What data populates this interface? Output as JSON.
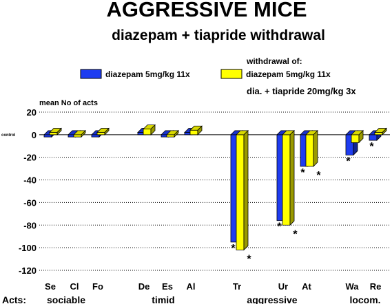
{
  "chart_data": {
    "type": "bar",
    "title": "AGGRESSIVE MICE",
    "subtitle": "diazepam + tiapride withdrawal",
    "ylabel": "mean No of acts",
    "zero_label": "control",
    "ylim": [
      -120,
      20
    ],
    "yticks": [
      20,
      0,
      -20,
      -40,
      -60,
      -80,
      -100,
      -120
    ],
    "grid": "dotted-horizontal",
    "legend": {
      "placement": "top",
      "heading": "withdrawal of:",
      "extra_line": "dia. + tiapride 20mg/kg 3x"
    },
    "categories": [
      "Se",
      "Cl",
      "Fo",
      "De",
      "Es",
      "Al",
      "Tr",
      "Ur",
      "At",
      "Wa",
      "Re"
    ],
    "groups_label": "Acts:",
    "groups": [
      {
        "name": "sociable",
        "members": [
          "Se",
          "Cl",
          "Fo"
        ]
      },
      {
        "name": "timid",
        "members": [
          "De",
          "Es",
          "Al"
        ]
      },
      {
        "name": "aggressive",
        "members": [
          "Tr",
          "Ur",
          "At"
        ]
      },
      {
        "name": "locom.",
        "members": [
          "Wa",
          "Re"
        ]
      }
    ],
    "series": [
      {
        "name": "diazepam 5mg/kg 11x",
        "color": "#1e3cf0",
        "values": [
          -2,
          -2,
          -2,
          2,
          -2,
          2,
          -95,
          -76,
          -28,
          -18,
          -5
        ],
        "significant": [
          false,
          false,
          false,
          false,
          false,
          false,
          true,
          true,
          true,
          true,
          true
        ]
      },
      {
        "name": "diazepam 5mg/kg 11x",
        "color": "#ffff00",
        "values": [
          2,
          -2,
          2,
          5,
          -2,
          4,
          -102,
          -80,
          -28,
          -7,
          2
        ],
        "significant": [
          false,
          false,
          false,
          false,
          false,
          false,
          true,
          true,
          true,
          false,
          false
        ]
      }
    ],
    "significance_mark": "*"
  }
}
